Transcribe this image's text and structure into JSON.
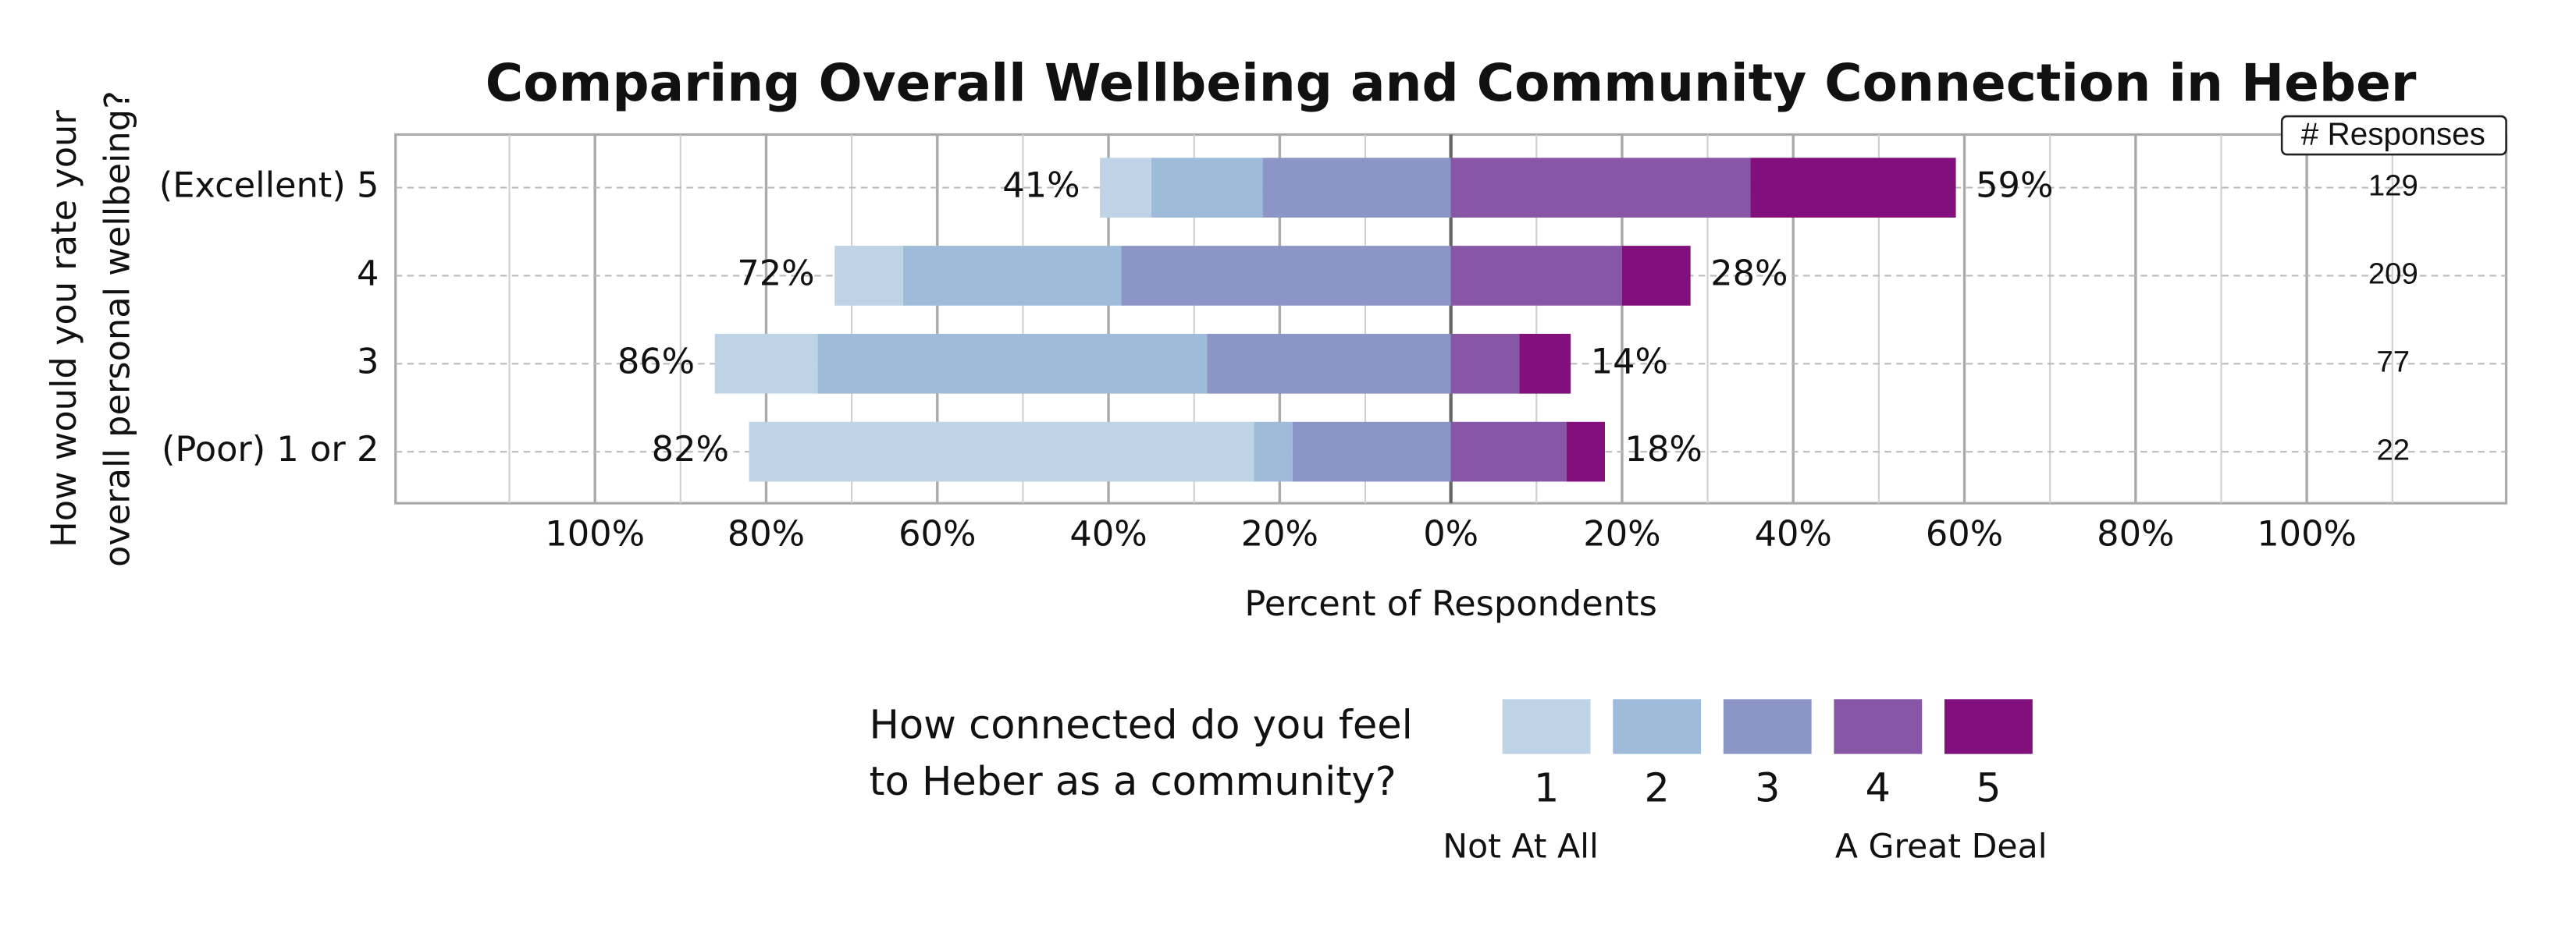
{
  "chart_data": {
    "type": "diverging_bar",
    "title": "Comparing Overall Wellbeing and Community Connection in Heber",
    "y_title": [
      "How would you rate your",
      "overall personal wellbeing?"
    ],
    "x_title": "Percent of Respondents",
    "categories": [
      "(Excellent) 5",
      "4",
      "3",
      "(Poor) 1 or 2"
    ],
    "series": [
      {
        "name": "1",
        "color": "#bfd3e6",
        "side": "left",
        "values": [
          6,
          8,
          12,
          59
        ]
      },
      {
        "name": "2",
        "color": "#9ebcda",
        "side": "left",
        "values": [
          13,
          25.5,
          45.5,
          4.5
        ]
      },
      {
        "name": "3",
        "color": "#8c96c6",
        "side": "left",
        "values": [
          22,
          38.5,
          28.5,
          18.5
        ]
      },
      {
        "name": "4",
        "color": "#8856a7",
        "side": "right",
        "values": [
          35,
          20,
          8,
          13.5
        ]
      },
      {
        "name": "5",
        "color": "#810f7c",
        "side": "right",
        "values": [
          24,
          8,
          6,
          4.5
        ]
      }
    ],
    "left_totals": {
      "values": [
        41,
        72,
        86,
        82
      ],
      "value_labels": [
        "41%",
        "72%",
        "86%",
        "82%"
      ]
    },
    "right_totals": {
      "values": [
        59,
        28,
        14,
        18
      ],
      "value_labels": [
        "59%",
        "28%",
        "14%",
        "18%"
      ]
    },
    "responses": {
      "title": "# Responses",
      "values": [
        129,
        209,
        77,
        22
      ]
    },
    "xlim": [
      -123.3,
      123.3
    ],
    "xticks": [
      {
        "value": -100,
        "label": "100%"
      },
      {
        "value": -80,
        "label": "80%"
      },
      {
        "value": -60,
        "label": "60%"
      },
      {
        "value": -40,
        "label": "40%"
      },
      {
        "value": -20,
        "label": "20%"
      },
      {
        "value": 0,
        "label": "0%"
      },
      {
        "value": 20,
        "label": "20%"
      },
      {
        "value": 40,
        "label": "40%"
      },
      {
        "value": 60,
        "label": "60%"
      },
      {
        "value": 80,
        "label": "80%"
      },
      {
        "value": 100,
        "label": "100%"
      }
    ],
    "minor_xticks": [
      -110,
      -90,
      -70,
      -50,
      -30,
      -10,
      10,
      30,
      50,
      70,
      90,
      110
    ],
    "grid": true,
    "legend": {
      "title": [
        "How connected do you feel",
        "to Heber as a community?"
      ],
      "low_label": "Not At All",
      "high_label": "A Great Deal"
    }
  }
}
